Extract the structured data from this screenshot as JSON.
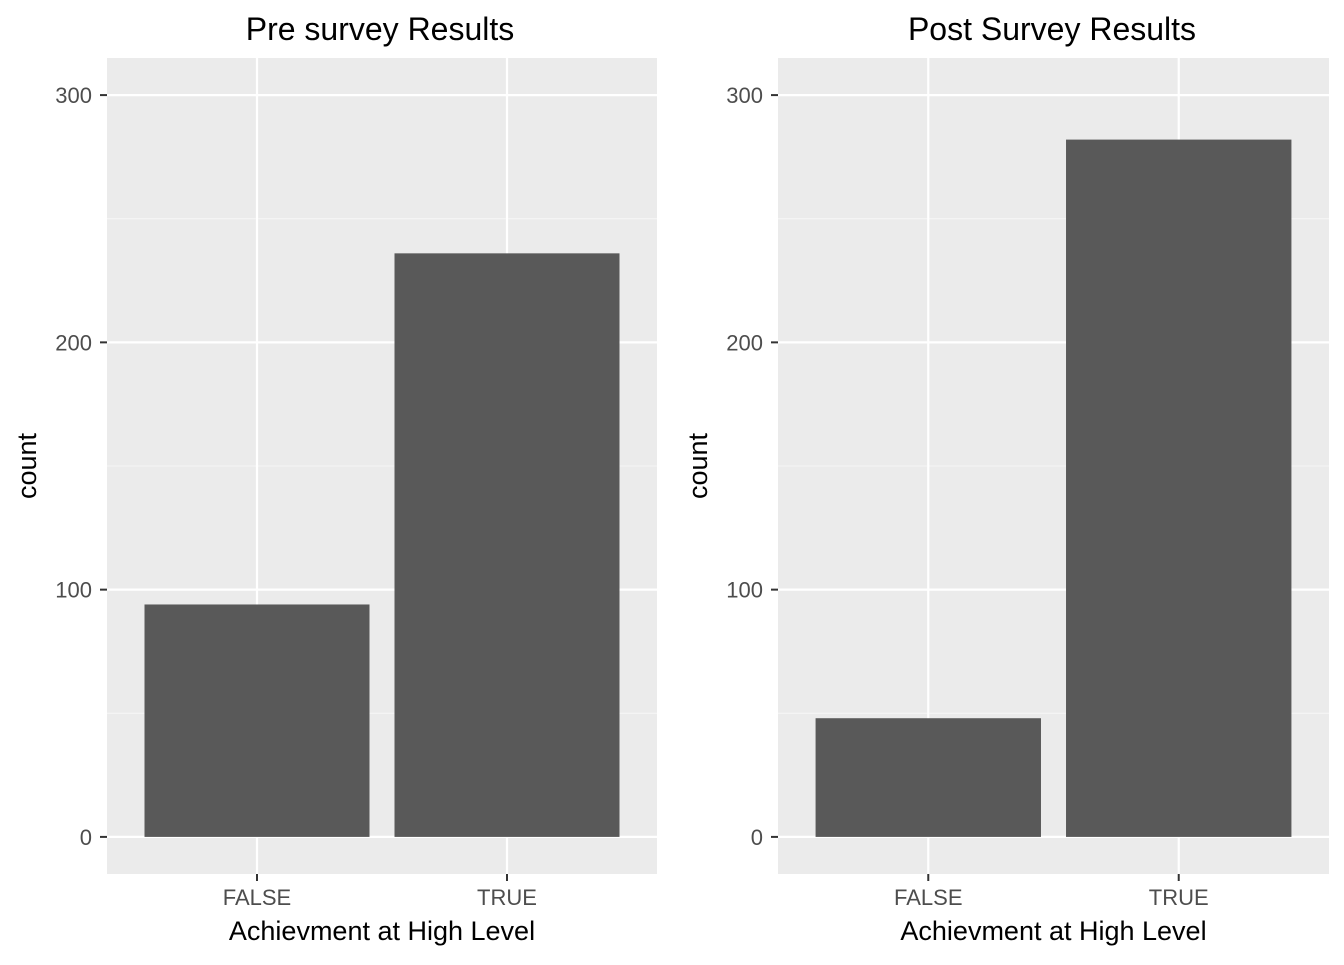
{
  "chart_data": [
    {
      "type": "bar",
      "title": "Pre survey Results",
      "xlabel": "Achievment at High Level",
      "ylabel": "count",
      "categories": [
        "FALSE",
        "TRUE"
      ],
      "values": [
        94,
        236
      ],
      "ylim": [
        -15,
        315
      ],
      "yticks": [
        0,
        100,
        200,
        300
      ],
      "grid": true,
      "colors": {
        "panel_bg": "#ebebeb",
        "grid_major": "#ffffff",
        "grid_minor": "#f5f5f5",
        "bar": "#595959",
        "axis_text": "#4d4d4d",
        "title_text": "#000000"
      }
    },
    {
      "type": "bar",
      "title": "Post Survey Results",
      "xlabel": "Achievment at High Level",
      "ylabel": "count",
      "categories": [
        "FALSE",
        "TRUE"
      ],
      "values": [
        48,
        282
      ],
      "ylim": [
        -15,
        315
      ],
      "yticks": [
        0,
        100,
        200,
        300
      ],
      "grid": true,
      "colors": {
        "panel_bg": "#ebebeb",
        "grid_major": "#ffffff",
        "grid_minor": "#f5f5f5",
        "bar": "#595959",
        "axis_text": "#4d4d4d",
        "title_text": "#000000"
      }
    }
  ]
}
